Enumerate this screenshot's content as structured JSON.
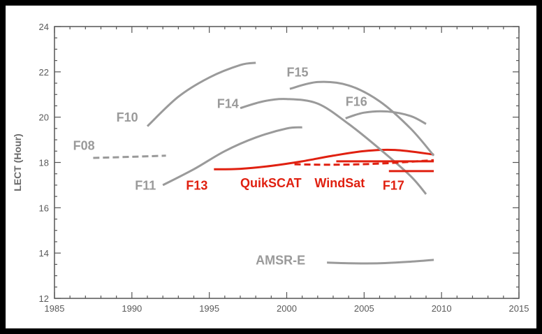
{
  "chart_data": {
    "type": "line",
    "title": "",
    "xlabel": "",
    "ylabel": "LECT (Hour)",
    "xlim": [
      1985,
      2015
    ],
    "ylim": [
      12,
      24
    ],
    "x_ticks": [
      1985,
      1990,
      1995,
      2000,
      2005,
      2010,
      2015
    ],
    "y_ticks": [
      12,
      14,
      16,
      18,
      20,
      22,
      24
    ],
    "grid": false,
    "colors": {
      "ssmi": "#9a9a9a",
      "ocean": "#e02010",
      "axis": "#555555"
    },
    "series": [
      {
        "name": "F08",
        "color": "#9a9a9a",
        "dashed": true,
        "label_at": [
          1986.2,
          18.55
        ],
        "points": [
          [
            1987.5,
            18.2
          ],
          [
            1990.0,
            18.25
          ],
          [
            1992.2,
            18.3
          ]
        ]
      },
      {
        "name": "F10",
        "color": "#9a9a9a",
        "dashed": false,
        "label_at": [
          1989.0,
          19.8
        ],
        "points": [
          [
            1991.0,
            19.6
          ],
          [
            1993.0,
            20.9
          ],
          [
            1995.0,
            21.75
          ],
          [
            1997.0,
            22.3
          ],
          [
            1998.0,
            22.4
          ]
        ]
      },
      {
        "name": "F11",
        "color": "#9a9a9a",
        "dashed": false,
        "label_at": [
          1990.2,
          16.8
        ],
        "points": [
          [
            1992.0,
            17.0
          ],
          [
            1994.0,
            17.7
          ],
          [
            1996.0,
            18.5
          ],
          [
            1998.0,
            19.1
          ],
          [
            2000.0,
            19.5
          ],
          [
            2001.0,
            19.55
          ]
        ]
      },
      {
        "name": "F13",
        "color": "#e02010",
        "dashed": false,
        "label_at": [
          1993.5,
          16.8
        ],
        "points": [
          [
            1995.3,
            17.7
          ],
          [
            1997.0,
            17.72
          ],
          [
            1999.0,
            17.85
          ],
          [
            2001.0,
            18.05
          ],
          [
            2003.0,
            18.3
          ],
          [
            2005.0,
            18.5
          ],
          [
            2007.0,
            18.55
          ],
          [
            2009.5,
            18.35
          ]
        ]
      },
      {
        "name": "F14",
        "color": "#9a9a9a",
        "dashed": false,
        "label_at": [
          1995.5,
          20.4
        ],
        "points": [
          [
            1997.0,
            20.4
          ],
          [
            1998.5,
            20.7
          ],
          [
            2000.0,
            20.8
          ],
          [
            2002.0,
            20.6
          ],
          [
            2004.0,
            19.7
          ],
          [
            2006.0,
            18.6
          ],
          [
            2008.0,
            17.4
          ],
          [
            2009.0,
            16.6
          ]
        ]
      },
      {
        "name": "F15",
        "color": "#9a9a9a",
        "dashed": false,
        "label_at": [
          2000.0,
          21.8
        ],
        "points": [
          [
            2000.2,
            21.25
          ],
          [
            2002.0,
            21.55
          ],
          [
            2004.0,
            21.4
          ],
          [
            2006.0,
            20.7
          ],
          [
            2008.0,
            19.5
          ],
          [
            2009.5,
            18.3
          ]
        ]
      },
      {
        "name": "F16",
        "color": "#9a9a9a",
        "dashed": false,
        "label_at": [
          2003.8,
          20.5
        ],
        "points": [
          [
            2003.8,
            19.95
          ],
          [
            2005.0,
            20.2
          ],
          [
            2006.5,
            20.25
          ],
          [
            2008.0,
            20.05
          ],
          [
            2009.0,
            19.7
          ]
        ]
      },
      {
        "name": "F17",
        "color": "#e02010",
        "dashed": false,
        "label_at": [
          2006.2,
          16.8
        ],
        "points": [
          [
            2006.6,
            17.62
          ],
          [
            2009.5,
            17.62
          ]
        ]
      },
      {
        "name": "QuikSCAT",
        "color": "#e02010",
        "dashed": true,
        "label_at": [
          1997.0,
          16.9
        ],
        "points": [
          [
            2000.5,
            17.92
          ],
          [
            2003.0,
            17.9
          ],
          [
            2006.0,
            17.95
          ],
          [
            2009.5,
            18.1
          ]
        ]
      },
      {
        "name": "WindSat",
        "color": "#e02010",
        "dashed": false,
        "label_at": [
          2001.8,
          16.9
        ],
        "points": [
          [
            2003.2,
            18.05
          ],
          [
            2006.0,
            18.05
          ],
          [
            2009.5,
            18.05
          ]
        ]
      },
      {
        "name": "AMSR-E",
        "color": "#9a9a9a",
        "dashed": false,
        "label_at": [
          1998.0,
          13.5
        ],
        "points": [
          [
            2002.6,
            13.58
          ],
          [
            2004.0,
            13.55
          ],
          [
            2006.0,
            13.55
          ],
          [
            2008.0,
            13.62
          ],
          [
            2009.5,
            13.7
          ]
        ]
      }
    ]
  }
}
